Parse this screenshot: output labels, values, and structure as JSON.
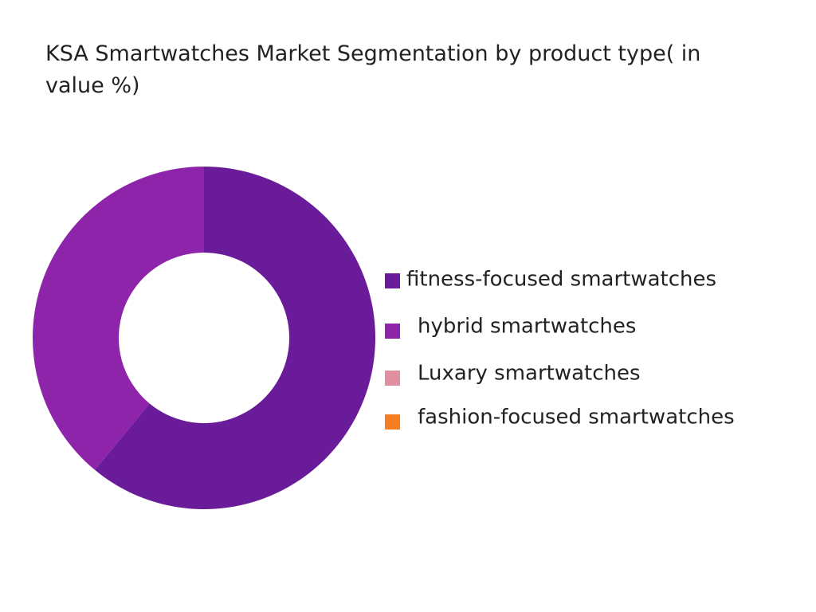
{
  "chart_data": {
    "type": "donut",
    "title": "KSA Smartwatches Market Segmentation by product type( in value %)",
    "categories": [
      "fitness-focused smartwatches",
      "hybrid smartwatches",
      "Luxary smartwatches",
      "fashion-focused smartwatches"
    ],
    "values": [
      61,
      39,
      0,
      0
    ],
    "colors": [
      "#6a1b9a",
      "#8e24aa",
      "#e08fa0",
      "#f57c1f"
    ],
    "legend": "right"
  }
}
